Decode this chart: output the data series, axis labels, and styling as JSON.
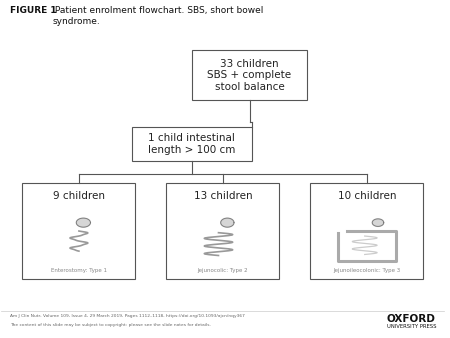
{
  "title_bold": "FIGURE 1",
  "title_normal": " Patient enrolment flowchart. SBS, short bowel\nsyndrome.",
  "box1_text": "33 children\nSBS + complete\nstool balance",
  "box2_text": "1 child intestinal\nlength > 100 cm",
  "box3_text": "9 children",
  "box4_text": "13 children",
  "box5_text": "10 children",
  "box3_label": "Enterostomy: Type 1",
  "box4_label": "Jejunocolic: Type 2",
  "box5_label": "Jejunoileocolonic: Type 3",
  "footer_line1": "Am J Clin Nutr, Volume 109, Issue 4, 29 March 2019, Pages 1112–1118, https://doi.org/10.1093/ajcn/nqy367",
  "footer_line2": "The content of this slide may be subject to copyright: please see the slide notes for details.",
  "oxford_line1": "OXFORD",
  "oxford_line2": "UNIVERSITY PRESS",
  "bg_color": "#ffffff",
  "box_edge_color": "#555555",
  "box_fill_color": "#ffffff",
  "line_color": "#555555",
  "text_color": "#222222",
  "footer_color": "#666666"
}
